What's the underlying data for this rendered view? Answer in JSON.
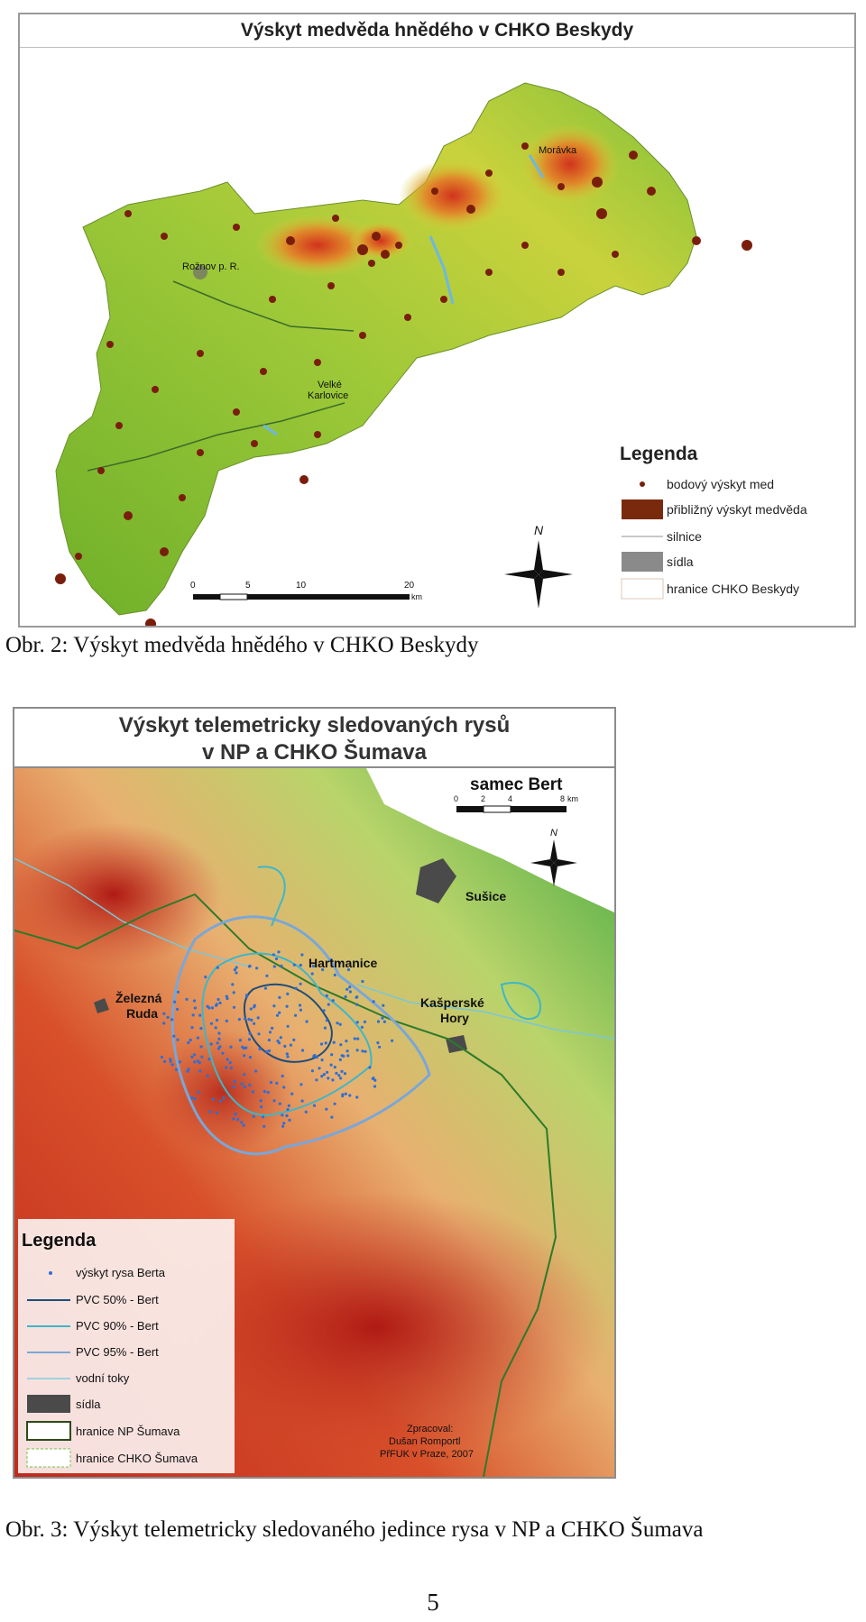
{
  "map1": {
    "title": "Výskyt medvěda hnědého v CHKO Beskydy",
    "places": [
      "Morávka",
      "Rožnov p. R.",
      "Velké",
      "Karlovice"
    ],
    "legend_title": "Legenda",
    "legend": [
      "bodový výskyt med",
      "přibližný výskyt medvěda",
      "silnice",
      "sídla",
      "hranice CHKO Beskydy"
    ],
    "north": "N",
    "scale_ticks": [
      "0",
      "5",
      "10",
      "20"
    ],
    "scale_unit": "km"
  },
  "caption1": "Obr. 2: Výskyt medvěda hnědého v CHKO Beskydy",
  "map2": {
    "title_line1": "Výskyt telemetricky sledovaných rysů",
    "title_line2": "v NP a CHKO Šumava",
    "subject": "samec Bert",
    "scale_ticks": [
      "0",
      "2",
      "4",
      "8"
    ],
    "scale_unit": "km",
    "north": "N",
    "places": [
      "Sušice",
      "Hartmanice",
      "Železná",
      "Ruda",
      "Kašperské",
      "Hory"
    ],
    "legend_title": "Legenda",
    "legend": [
      "výskyt rysa Berta",
      "PVC 50% - Bert",
      "PVC 90% - Bert",
      "PVC 95% - Bert",
      "vodní toky",
      "sídla",
      "hranice NP Šumava",
      "hranice CHKO Šumava"
    ],
    "credit_line1": "Zpracoval:",
    "credit_line2": "Dušan Romportl",
    "credit_line3": "PřFUK v Praze, 2007"
  },
  "caption2": "Obr. 3: Výskyt telemetricky sledovaného jedince rysa v NP a CHKO Šumava",
  "page_number": "5",
  "colors": {
    "lowland_green": "#7dbf2e",
    "highland_yellow": "#d8d23a",
    "peak_red": "#c0301f",
    "bear_dot": "#7a1e0c",
    "lynx_dot": "#2d6fd6",
    "pvc50": "#1f4e79",
    "pvc90": "#3fb6c8",
    "pvc95": "#7aa6d8"
  }
}
